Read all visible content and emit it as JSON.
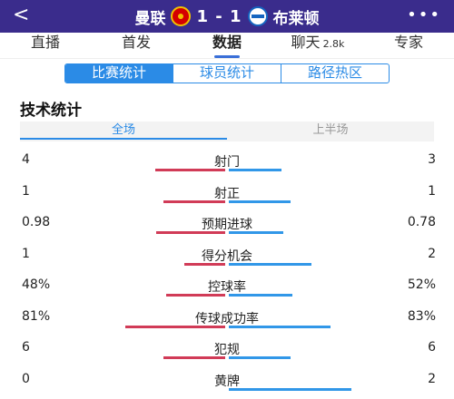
{
  "header": {
    "back_icon": "back-arrow-icon",
    "home_team": "曼联",
    "score": "1 - 1",
    "away_team": "布莱顿",
    "more_icon": "more-dots-icon",
    "more_glyph": "•••",
    "back_glyph": "<"
  },
  "tabs": [
    {
      "label": "直播",
      "sub": ""
    },
    {
      "label": "首发",
      "sub": ""
    },
    {
      "label": "数据",
      "sub": "",
      "active": true
    },
    {
      "label": "聊天",
      "sub": "2.8k"
    },
    {
      "label": "专家",
      "sub": ""
    }
  ],
  "segments": [
    "比赛统计",
    "球员统计",
    "路径热区"
  ],
  "section_title": "技术统计",
  "periods": [
    "全场",
    "上半场"
  ],
  "colors": {
    "home_bar": "#d13b57",
    "away_bar": "#3197e8",
    "accent": "#2b8be6",
    "header_bg": "#3a2c8c"
  },
  "stats": [
    {
      "label": "射门",
      "home": "4",
      "away": "3",
      "home_frac": 0.57,
      "away_frac": 0.43
    },
    {
      "label": "射正",
      "home": "1",
      "away": "1",
      "home_frac": 0.5,
      "away_frac": 0.5
    },
    {
      "label": "预期进球",
      "home": "0.98",
      "away": "0.78",
      "home_frac": 0.56,
      "away_frac": 0.44
    },
    {
      "label": "得分机会",
      "home": "1",
      "away": "2",
      "home_frac": 0.33,
      "away_frac": 0.67
    },
    {
      "label": "控球率",
      "home": "48%",
      "away": "52%",
      "home_frac": 0.48,
      "away_frac": 0.52
    },
    {
      "label": "传球成功率",
      "home": "81%",
      "away": "83%",
      "home_frac": 0.81,
      "away_frac": 0.83
    },
    {
      "label": "犯规",
      "home": "6",
      "away": "6",
      "home_frac": 0.5,
      "away_frac": 0.5
    },
    {
      "label": "黄牌",
      "home": "0",
      "away": "2",
      "home_frac": 0.0,
      "away_frac": 1.0
    }
  ]
}
